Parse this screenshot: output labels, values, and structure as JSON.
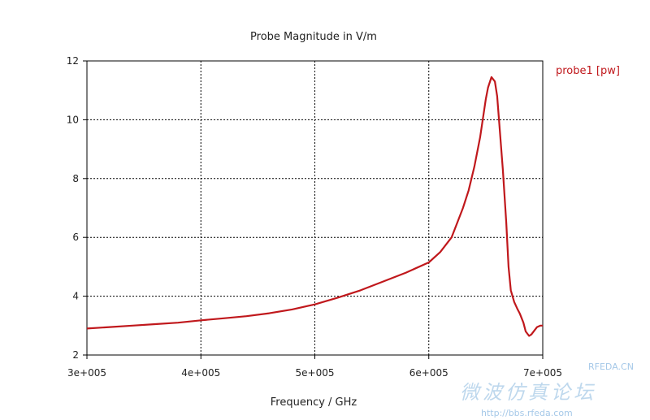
{
  "chart_data": {
    "type": "line",
    "title": "Probe Magnitude in V/m",
    "xlabel": "Frequency / GHz",
    "ylabel": "",
    "xlim": [
      300000,
      700000
    ],
    "ylim": [
      2,
      12
    ],
    "x_ticks": [
      300000,
      400000,
      500000,
      600000,
      700000
    ],
    "x_tick_labels": [
      "3e+005",
      "4e+005",
      "5e+005",
      "6e+005",
      "7e+005"
    ],
    "y_ticks": [
      2,
      4,
      6,
      8,
      10,
      12
    ],
    "y_tick_labels": [
      "2",
      "4",
      "6",
      "8",
      "10",
      "12"
    ],
    "grid": true,
    "legend_position": "top-right",
    "series": [
      {
        "name": "probe1 [pw]",
        "color": "#c0181c",
        "x": [
          300000,
          320000,
          340000,
          360000,
          380000,
          400000,
          420000,
          440000,
          460000,
          480000,
          500000,
          520000,
          540000,
          560000,
          580000,
          600000,
          610000,
          620000,
          625000,
          630000,
          635000,
          640000,
          645000,
          650000,
          652000,
          655000,
          658000,
          660000,
          662000,
          665000,
          668000,
          670000,
          672000,
          675000,
          678000,
          680000,
          683000,
          685000,
          688000,
          690000,
          693000,
          695000,
          698000,
          700000
        ],
        "values": [
          2.9,
          2.95,
          3.0,
          3.05,
          3.1,
          3.18,
          3.25,
          3.32,
          3.42,
          3.55,
          3.72,
          3.95,
          4.2,
          4.5,
          4.8,
          5.15,
          5.5,
          6.0,
          6.5,
          7.0,
          7.6,
          8.4,
          9.4,
          10.7,
          11.1,
          11.45,
          11.3,
          10.8,
          9.8,
          8.3,
          6.5,
          5.0,
          4.2,
          3.8,
          3.55,
          3.4,
          3.1,
          2.8,
          2.65,
          2.7,
          2.85,
          2.95,
          3.0,
          3.0
        ]
      }
    ]
  },
  "watermark": {
    "text_cn": "微波仿真论坛",
    "site": "RFEDA.CN",
    "url": "http://bbs.rfeda.com"
  }
}
